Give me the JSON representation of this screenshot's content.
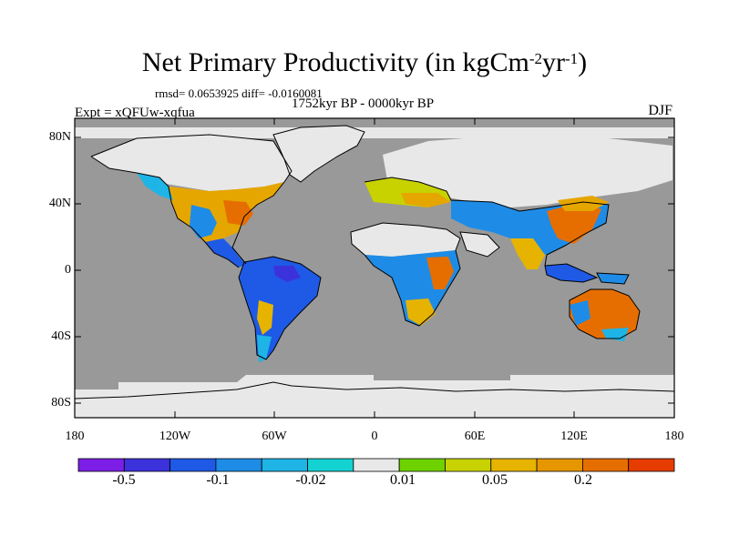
{
  "title": {
    "main": "Net Primary Productivity (in kgCm",
    "exp1": "-2",
    "mid": "yr",
    "exp2": "-1",
    "close": ")"
  },
  "stats": "rmsd= 0.0653925 diff= -0.0160081",
  "experiment": "Expt = xQFUw-xqfua",
  "period": "1752kyr BP - 0000kyr BP",
  "season": "DJF",
  "axes": {
    "y_ticks": [
      "80N",
      "40N",
      "0",
      "40S",
      "80S"
    ],
    "x_ticks": [
      "180",
      "120W",
      "60W",
      "0",
      "60E",
      "120E",
      "180"
    ]
  },
  "colorbar": {
    "colors": [
      "#7d1ee6",
      "#3c32dc",
      "#1e5ae6",
      "#1e8ce6",
      "#1eb4e6",
      "#14d2d2",
      "#e8e8e8",
      "#6ed200",
      "#c8d200",
      "#e6b400",
      "#e69600",
      "#e66e00",
      "#e63c00"
    ],
    "labels": [
      "-0.5",
      "-0.1",
      "-0.02",
      "0.01",
      "0.05",
      "0.2"
    ]
  },
  "colors": {
    "ocean": "#999999",
    "neutral_land": "#e8e8e8",
    "coastline": "#000000"
  }
}
